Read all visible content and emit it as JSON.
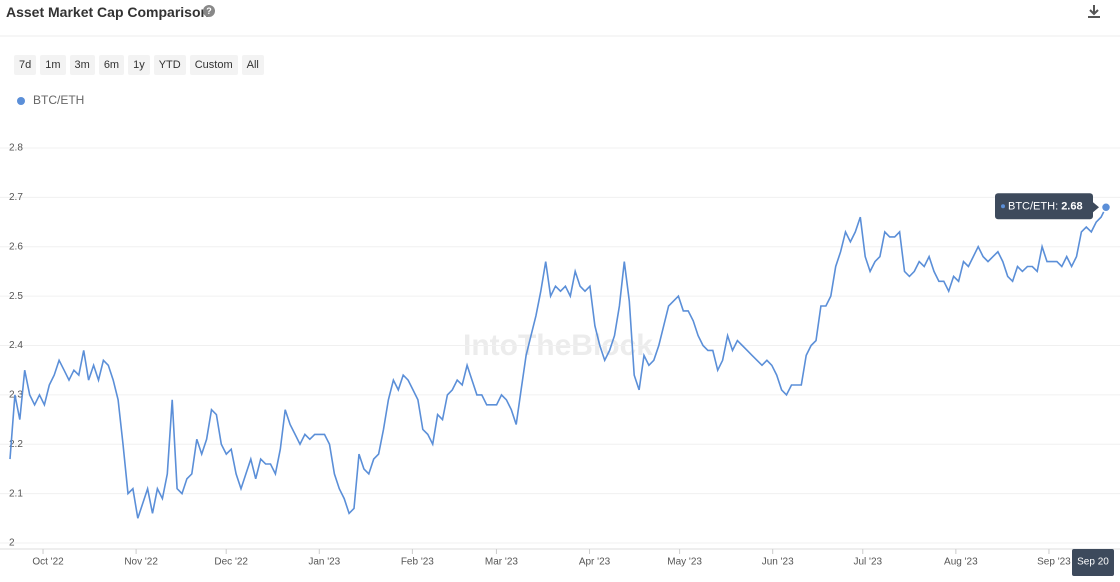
{
  "header": {
    "title": "Asset Market Cap Comparison",
    "range_buttons": [
      "7d",
      "1m",
      "3m",
      "6m",
      "1y",
      "YTD",
      "Custom",
      "All"
    ]
  },
  "chart_data": {
    "type": "line",
    "watermark": "IntoTheBlock",
    "highlight_x_label": "Sep 20",
    "series": [
      {
        "name": "BTC/ETH",
        "color": "#5b8fd8",
        "values": [
          2.17,
          2.3,
          2.25,
          2.35,
          2.3,
          2.28,
          2.3,
          2.28,
          2.32,
          2.34,
          2.37,
          2.35,
          2.33,
          2.35,
          2.34,
          2.39,
          2.33,
          2.36,
          2.33,
          2.37,
          2.36,
          2.33,
          2.29,
          2.2,
          2.1,
          2.11,
          2.05,
          2.08,
          2.11,
          2.06,
          2.11,
          2.09,
          2.14,
          2.29,
          2.11,
          2.1,
          2.13,
          2.14,
          2.21,
          2.18,
          2.21,
          2.27,
          2.26,
          2.2,
          2.18,
          2.19,
          2.14,
          2.11,
          2.14,
          2.17,
          2.13,
          2.17,
          2.16,
          2.16,
          2.14,
          2.19,
          2.27,
          2.24,
          2.22,
          2.2,
          2.22,
          2.21,
          2.22,
          2.22,
          2.22,
          2.2,
          2.14,
          2.11,
          2.09,
          2.06,
          2.07,
          2.18,
          2.15,
          2.14,
          2.17,
          2.18,
          2.23,
          2.29,
          2.33,
          2.31,
          2.34,
          2.33,
          2.31,
          2.29,
          2.23,
          2.22,
          2.2,
          2.26,
          2.25,
          2.3,
          2.31,
          2.33,
          2.32,
          2.36,
          2.33,
          2.3,
          2.3,
          2.28,
          2.28,
          2.28,
          2.3,
          2.29,
          2.27,
          2.24,
          2.31,
          2.38,
          2.42,
          2.46,
          2.51,
          2.57,
          2.5,
          2.52,
          2.51,
          2.52,
          2.5,
          2.55,
          2.52,
          2.51,
          2.52,
          2.44,
          2.4,
          2.37,
          2.39,
          2.42,
          2.48,
          2.57,
          2.49,
          2.34,
          2.31,
          2.38,
          2.36,
          2.37,
          2.4,
          2.44,
          2.48,
          2.49,
          2.5,
          2.47,
          2.47,
          2.45,
          2.42,
          2.4,
          2.39,
          2.39,
          2.35,
          2.37,
          2.42,
          2.39,
          2.41,
          2.4,
          2.39,
          2.38,
          2.37,
          2.36,
          2.37,
          2.36,
          2.34,
          2.31,
          2.3,
          2.32,
          2.32,
          2.32,
          2.38,
          2.4,
          2.41,
          2.48,
          2.48,
          2.5,
          2.56,
          2.59,
          2.63,
          2.61,
          2.63,
          2.66,
          2.58,
          2.55,
          2.57,
          2.58,
          2.63,
          2.62,
          2.62,
          2.63,
          2.55,
          2.54,
          2.55,
          2.57,
          2.56,
          2.58,
          2.55,
          2.53,
          2.53,
          2.51,
          2.54,
          2.53,
          2.57,
          2.56,
          2.58,
          2.6,
          2.58,
          2.57,
          2.58,
          2.59,
          2.57,
          2.54,
          2.53,
          2.56,
          2.55,
          2.56,
          2.56,
          2.55,
          2.6,
          2.57,
          2.57,
          2.57,
          2.56,
          2.58,
          2.56,
          2.58,
          2.63,
          2.64,
          2.63,
          2.65,
          2.66,
          2.68
        ]
      }
    ],
    "ylim": [
      2,
      2.8
    ],
    "yticks": [
      2,
      2.1,
      2.2,
      2.3,
      2.4,
      2.5,
      2.6,
      2.7,
      2.8
    ],
    "grid": true,
    "xlim": [
      0,
      365
    ],
    "xticks": [
      {
        "value": 11,
        "label": "Oct '22"
      },
      {
        "value": 42,
        "label": "Nov '22"
      },
      {
        "value": 72,
        "label": "Dec '22"
      },
      {
        "value": 103,
        "label": "Jan '23"
      },
      {
        "value": 134,
        "label": "Feb '23"
      },
      {
        "value": 162,
        "label": "Mar '23"
      },
      {
        "value": 193,
        "label": "Apr '23"
      },
      {
        "value": 223,
        "label": "May '23"
      },
      {
        "value": 254,
        "label": "Jun '23"
      },
      {
        "value": 284,
        "label": "Jul '23"
      },
      {
        "value": 315,
        "label": "Aug '23"
      },
      {
        "value": 346,
        "label": "Sep '23"
      }
    ]
  }
}
